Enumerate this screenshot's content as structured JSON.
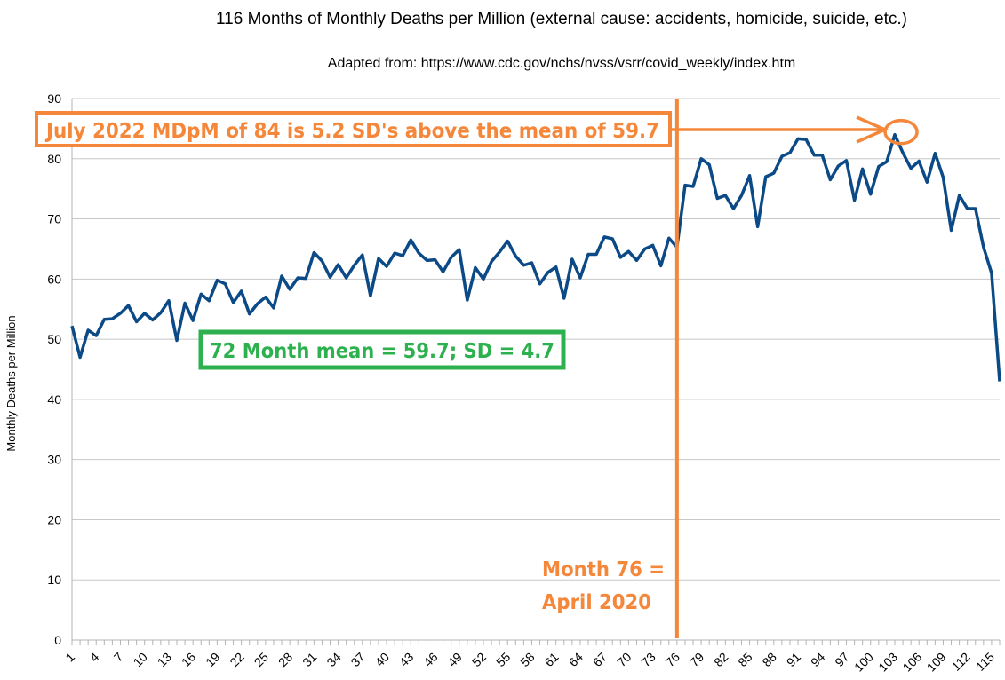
{
  "chart_data": {
    "type": "line",
    "title": "116 Months of Monthly Deaths per Million (external cause: accidents, homicide, suicide, etc.)",
    "subtitle": "Adapted from: https://www.cdc.gov/nchs/nvss/vsrr/covid_weekly/index.htm",
    "xlabel": "",
    "ylabel": "Monthly Deaths per Million",
    "ylim": [
      0,
      90
    ],
    "yticks": [
      0,
      10,
      20,
      30,
      40,
      50,
      60,
      70,
      80,
      90
    ],
    "xlim": [
      1,
      116
    ],
    "xtick_labels": [
      "1",
      "4",
      "7",
      "10",
      "13",
      "16",
      "19",
      "22",
      "25",
      "28",
      "31",
      "34",
      "37",
      "40",
      "43",
      "46",
      "49",
      "52",
      "55",
      "58",
      "61",
      "64",
      "67",
      "70",
      "73",
      "76",
      "79",
      "82",
      "85",
      "88",
      "91",
      "94",
      "97",
      "100",
      "103",
      "106",
      "109",
      "112",
      "115"
    ],
    "grid": "horizontal",
    "series_color": "#0b4a87",
    "annotation_color_orange": "#f5873a",
    "annotation_color_green": "#2db04e",
    "series": [
      {
        "values": [
          52.2,
          47.0,
          51.5,
          50.6,
          53.3,
          53.4,
          54.3,
          55.6,
          52.9,
          54.3,
          53.2,
          54.4,
          56.4,
          49.8,
          56.0,
          53.1,
          57.5,
          56.4,
          59.8,
          59.2,
          56.1,
          58.0,
          54.2,
          55.9,
          57.0,
          55.2,
          60.5,
          58.3,
          60.2,
          60.1,
          64.4,
          63.0,
          60.3,
          62.4,
          60.2,
          62.3,
          64.0,
          57.2,
          63.4,
          62.1,
          64.3,
          63.9,
          66.5,
          64.3,
          63.1,
          63.2,
          61.2,
          63.6,
          64.9,
          56.5,
          61.9,
          60.0,
          62.9,
          64.5,
          66.3,
          63.8,
          62.3,
          62.7,
          59.2,
          61.1,
          62.0,
          56.8,
          63.3,
          60.2,
          64.1,
          64.1,
          67.0,
          66.7,
          63.6,
          64.6,
          63.1,
          65.0,
          65.6,
          62.2,
          66.8,
          65.3,
          75.6,
          75.4,
          80.0,
          79.0,
          73.4,
          73.9,
          71.7,
          73.9,
          77.2,
          68.7,
          77.0,
          77.6,
          80.4,
          81.0,
          83.3,
          83.2,
          80.6,
          80.6,
          76.5,
          78.8,
          79.7,
          73.1,
          78.3,
          74.1,
          78.7,
          79.5,
          84.0,
          81.0,
          78.4,
          79.6,
          76.1,
          80.9,
          76.9,
          68.1,
          73.9,
          71.7,
          71.7,
          65.3,
          61.0,
          43.0
        ]
      }
    ],
    "annotations": {
      "july": "July 2022 MDpM of 84 is 5.2 SD's above the mean of 59.7",
      "mean": "72 Month mean = 59.7; SD = 4.7",
      "month76_line1": "Month 76 =",
      "month76_line2": "April 2020",
      "vline_x": 76,
      "highlight_x": 104,
      "highlight_y": 84
    }
  }
}
